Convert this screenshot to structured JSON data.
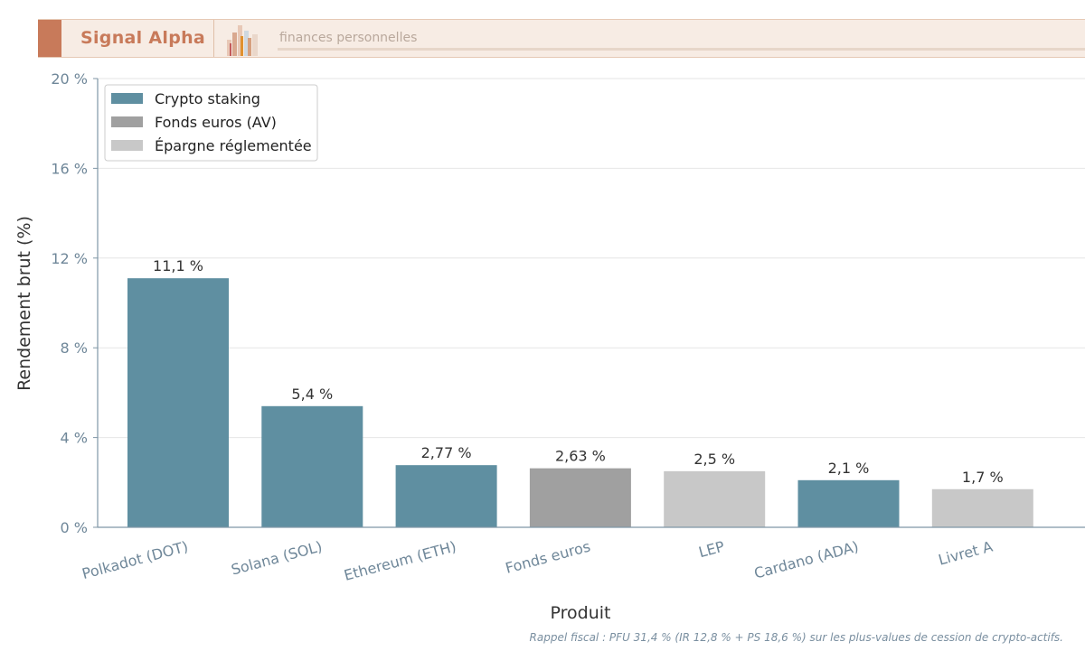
{
  "header": {
    "brand": "Signal Alpha",
    "tagline": "finances personnelles",
    "colors": {
      "accent": "#c87a5a",
      "background": "#f7ece4"
    }
  },
  "chart_data": {
    "type": "bar",
    "categories": [
      "Polkadot (DOT)",
      "Solana (SOL)",
      "Ethereum (ETH)",
      "Fonds euros",
      "LEP",
      "Cardano (ADA)",
      "Livret A"
    ],
    "values": [
      11.1,
      5.4,
      2.77,
      2.63,
      2.5,
      2.1,
      1.7
    ],
    "value_labels": [
      "11,1 %",
      "5,4 %",
      "2,77 %",
      "2,63 %",
      "2,5 %",
      "2,1 %",
      "1,7 %"
    ],
    "groups": [
      "Crypto staking",
      "Crypto staking",
      "Crypto staking",
      "Fonds euros (AV)",
      "Épargne réglementée",
      "Crypto staking",
      "Épargne réglementée"
    ],
    "legend": [
      {
        "name": "Crypto staking",
        "color": "#5f8fa1"
      },
      {
        "name": "Fonds euros (AV)",
        "color": "#a0a0a0"
      },
      {
        "name": "Épargne réglementée",
        "color": "#c8c8c8"
      }
    ],
    "legend_position": "top-left",
    "xlabel": "Produit",
    "ylabel": "Rendement brut (%)",
    "ylim": [
      0,
      20
    ],
    "yticks": [
      0,
      4,
      8,
      12,
      16,
      20
    ],
    "ytick_labels": [
      "0 %",
      "4 %",
      "8 %",
      "12 %",
      "16 %",
      "20 %"
    ],
    "grid": true
  },
  "footnote": "Rappel fiscal : PFU 31,4 % (IR 12,8 % + PS 18,6 %) sur les plus-values de cession de crypto-actifs."
}
